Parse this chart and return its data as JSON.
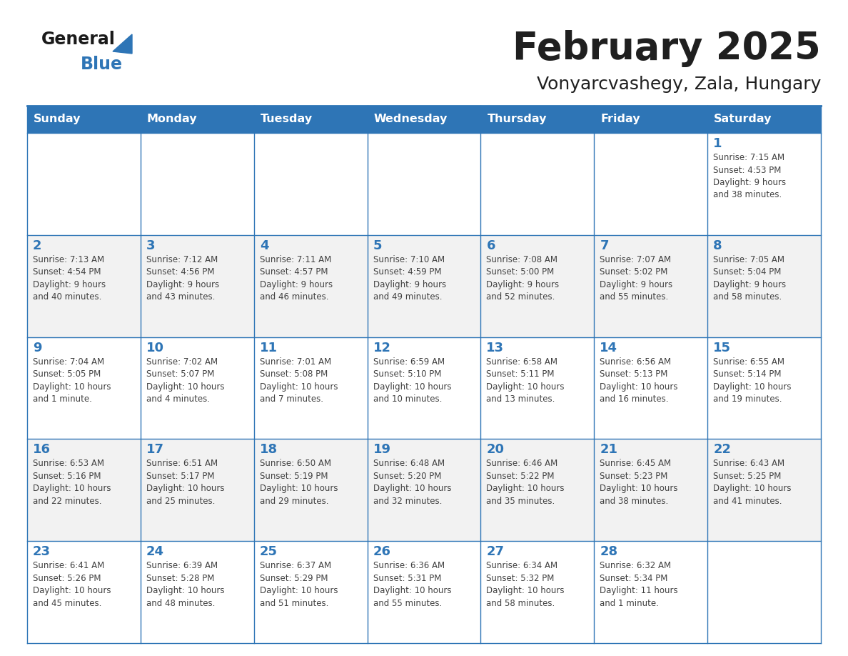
{
  "title": "February 2025",
  "subtitle": "Vonyarcvashegy, Zala, Hungary",
  "days_of_week": [
    "Sunday",
    "Monday",
    "Tuesday",
    "Wednesday",
    "Thursday",
    "Friday",
    "Saturday"
  ],
  "header_bg": "#2E75B6",
  "header_text": "#FFFFFF",
  "cell_bg_light": "#FFFFFF",
  "cell_bg_dark": "#F2F2F2",
  "grid_line_color": "#2E75B6",
  "day_number_color": "#2E75B6",
  "cell_text_color": "#404040",
  "title_color": "#1F1F1F",
  "weeks": [
    [
      {
        "day": null,
        "info": null
      },
      {
        "day": null,
        "info": null
      },
      {
        "day": null,
        "info": null
      },
      {
        "day": null,
        "info": null
      },
      {
        "day": null,
        "info": null
      },
      {
        "day": null,
        "info": null
      },
      {
        "day": 1,
        "info": "Sunrise: 7:15 AM\nSunset: 4:53 PM\nDaylight: 9 hours\nand 38 minutes."
      }
    ],
    [
      {
        "day": 2,
        "info": "Sunrise: 7:13 AM\nSunset: 4:54 PM\nDaylight: 9 hours\nand 40 minutes."
      },
      {
        "day": 3,
        "info": "Sunrise: 7:12 AM\nSunset: 4:56 PM\nDaylight: 9 hours\nand 43 minutes."
      },
      {
        "day": 4,
        "info": "Sunrise: 7:11 AM\nSunset: 4:57 PM\nDaylight: 9 hours\nand 46 minutes."
      },
      {
        "day": 5,
        "info": "Sunrise: 7:10 AM\nSunset: 4:59 PM\nDaylight: 9 hours\nand 49 minutes."
      },
      {
        "day": 6,
        "info": "Sunrise: 7:08 AM\nSunset: 5:00 PM\nDaylight: 9 hours\nand 52 minutes."
      },
      {
        "day": 7,
        "info": "Sunrise: 7:07 AM\nSunset: 5:02 PM\nDaylight: 9 hours\nand 55 minutes."
      },
      {
        "day": 8,
        "info": "Sunrise: 7:05 AM\nSunset: 5:04 PM\nDaylight: 9 hours\nand 58 minutes."
      }
    ],
    [
      {
        "day": 9,
        "info": "Sunrise: 7:04 AM\nSunset: 5:05 PM\nDaylight: 10 hours\nand 1 minute."
      },
      {
        "day": 10,
        "info": "Sunrise: 7:02 AM\nSunset: 5:07 PM\nDaylight: 10 hours\nand 4 minutes."
      },
      {
        "day": 11,
        "info": "Sunrise: 7:01 AM\nSunset: 5:08 PM\nDaylight: 10 hours\nand 7 minutes."
      },
      {
        "day": 12,
        "info": "Sunrise: 6:59 AM\nSunset: 5:10 PM\nDaylight: 10 hours\nand 10 minutes."
      },
      {
        "day": 13,
        "info": "Sunrise: 6:58 AM\nSunset: 5:11 PM\nDaylight: 10 hours\nand 13 minutes."
      },
      {
        "day": 14,
        "info": "Sunrise: 6:56 AM\nSunset: 5:13 PM\nDaylight: 10 hours\nand 16 minutes."
      },
      {
        "day": 15,
        "info": "Sunrise: 6:55 AM\nSunset: 5:14 PM\nDaylight: 10 hours\nand 19 minutes."
      }
    ],
    [
      {
        "day": 16,
        "info": "Sunrise: 6:53 AM\nSunset: 5:16 PM\nDaylight: 10 hours\nand 22 minutes."
      },
      {
        "day": 17,
        "info": "Sunrise: 6:51 AM\nSunset: 5:17 PM\nDaylight: 10 hours\nand 25 minutes."
      },
      {
        "day": 18,
        "info": "Sunrise: 6:50 AM\nSunset: 5:19 PM\nDaylight: 10 hours\nand 29 minutes."
      },
      {
        "day": 19,
        "info": "Sunrise: 6:48 AM\nSunset: 5:20 PM\nDaylight: 10 hours\nand 32 minutes."
      },
      {
        "day": 20,
        "info": "Sunrise: 6:46 AM\nSunset: 5:22 PM\nDaylight: 10 hours\nand 35 minutes."
      },
      {
        "day": 21,
        "info": "Sunrise: 6:45 AM\nSunset: 5:23 PM\nDaylight: 10 hours\nand 38 minutes."
      },
      {
        "day": 22,
        "info": "Sunrise: 6:43 AM\nSunset: 5:25 PM\nDaylight: 10 hours\nand 41 minutes."
      }
    ],
    [
      {
        "day": 23,
        "info": "Sunrise: 6:41 AM\nSunset: 5:26 PM\nDaylight: 10 hours\nand 45 minutes."
      },
      {
        "day": 24,
        "info": "Sunrise: 6:39 AM\nSunset: 5:28 PM\nDaylight: 10 hours\nand 48 minutes."
      },
      {
        "day": 25,
        "info": "Sunrise: 6:37 AM\nSunset: 5:29 PM\nDaylight: 10 hours\nand 51 minutes."
      },
      {
        "day": 26,
        "info": "Sunrise: 6:36 AM\nSunset: 5:31 PM\nDaylight: 10 hours\nand 55 minutes."
      },
      {
        "day": 27,
        "info": "Sunrise: 6:34 AM\nSunset: 5:32 PM\nDaylight: 10 hours\nand 58 minutes."
      },
      {
        "day": 28,
        "info": "Sunrise: 6:32 AM\nSunset: 5:34 PM\nDaylight: 11 hours\nand 1 minute."
      },
      {
        "day": null,
        "info": null
      }
    ]
  ],
  "logo_general_color": "#1a1a1a",
  "logo_blue_color": "#2E75B6",
  "logo_triangle_color": "#2E75B6"
}
